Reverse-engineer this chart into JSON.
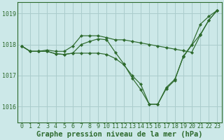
{
  "background_color": "#cce8e8",
  "grid_color": "#aacccc",
  "line_color": "#2d6a2d",
  "marker_color": "#2d6a2d",
  "xlabel": "Graphe pression niveau de la mer (hPa)",
  "xlabel_fontsize": 7.5,
  "tick_fontsize": 6,
  "ylim": [
    1015.5,
    1019.35
  ],
  "xlim": [
    -0.5,
    23.5
  ],
  "yticks": [
    1016,
    1017,
    1018,
    1019
  ],
  "xticks": [
    0,
    1,
    2,
    3,
    4,
    5,
    6,
    7,
    8,
    9,
    10,
    11,
    12,
    13,
    14,
    15,
    16,
    17,
    18,
    19,
    20,
    21,
    22,
    23
  ],
  "series": [
    [
      1017.95,
      1017.78,
      1017.78,
      1017.82,
      1017.78,
      1017.78,
      1017.95,
      1018.28,
      1018.28,
      1018.28,
      1018.22,
      1018.15,
      1018.15,
      1018.1,
      1018.05,
      1018.0,
      1017.95,
      1017.9,
      1017.85,
      1017.8,
      1017.75,
      1018.3,
      1018.78,
      1019.1
    ],
    [
      1017.95,
      1017.78,
      1017.78,
      1017.78,
      1017.7,
      1017.68,
      1017.72,
      1018.0,
      1018.1,
      1018.18,
      1018.15,
      1017.75,
      1017.38,
      1016.92,
      1016.55,
      1016.08,
      1016.08,
      1016.62,
      1016.88,
      1017.6,
      1017.98,
      1018.32,
      1018.78,
      1019.1
    ],
    [
      1017.95,
      1017.78,
      1017.78,
      1017.78,
      1017.7,
      1017.68,
      1017.72,
      1017.72,
      1017.72,
      1017.72,
      1017.68,
      1017.55,
      1017.35,
      1017.0,
      1016.72,
      1016.08,
      1016.08,
      1016.58,
      1016.85,
      1017.62,
      1018.0,
      1018.65,
      1018.9,
      1019.1
    ]
  ]
}
